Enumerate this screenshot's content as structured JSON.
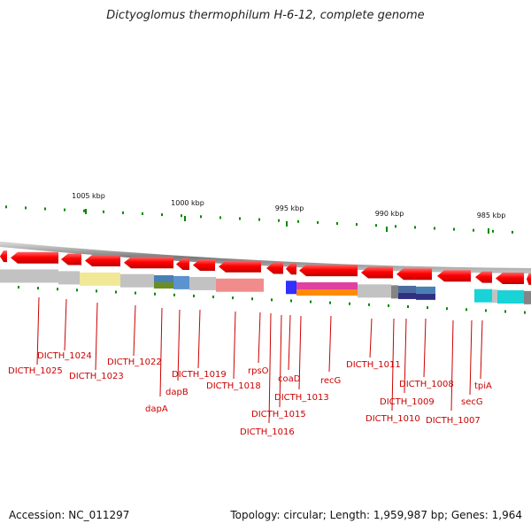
{
  "title": "Dictyoglomus thermophilum H-6-12, complete genome",
  "footer": {
    "accession": "Accession: NC_011297",
    "summary": "Topology: circular; Length: 1,959,987 bp; Genes: 1,964"
  },
  "scale_ticks": [
    "1005 kbp",
    "1000 kbp",
    "995 kbp",
    "990 kbp",
    "985 kbp"
  ],
  "gene_labels": [
    "DICTH_1025",
    "DICTH_1024",
    "DICTH_1023",
    "DICTH_1022",
    "dapA",
    "dapB",
    "DICTH_1019",
    "DICTH_1018",
    "rpsO",
    "DICTH_1016",
    "DICTH_1015",
    "coaD",
    "DICTH_1013",
    "recG",
    "DICTH_1011",
    "DICTH_1010",
    "DICTH_1009",
    "DICTH_1008",
    "DICTH_1007",
    "secG",
    "tpiA"
  ],
  "colors": {
    "gene_arrow": "#ff0000",
    "label": "#cc0000",
    "backbone": "#888888",
    "gc_marks": "#008800"
  }
}
